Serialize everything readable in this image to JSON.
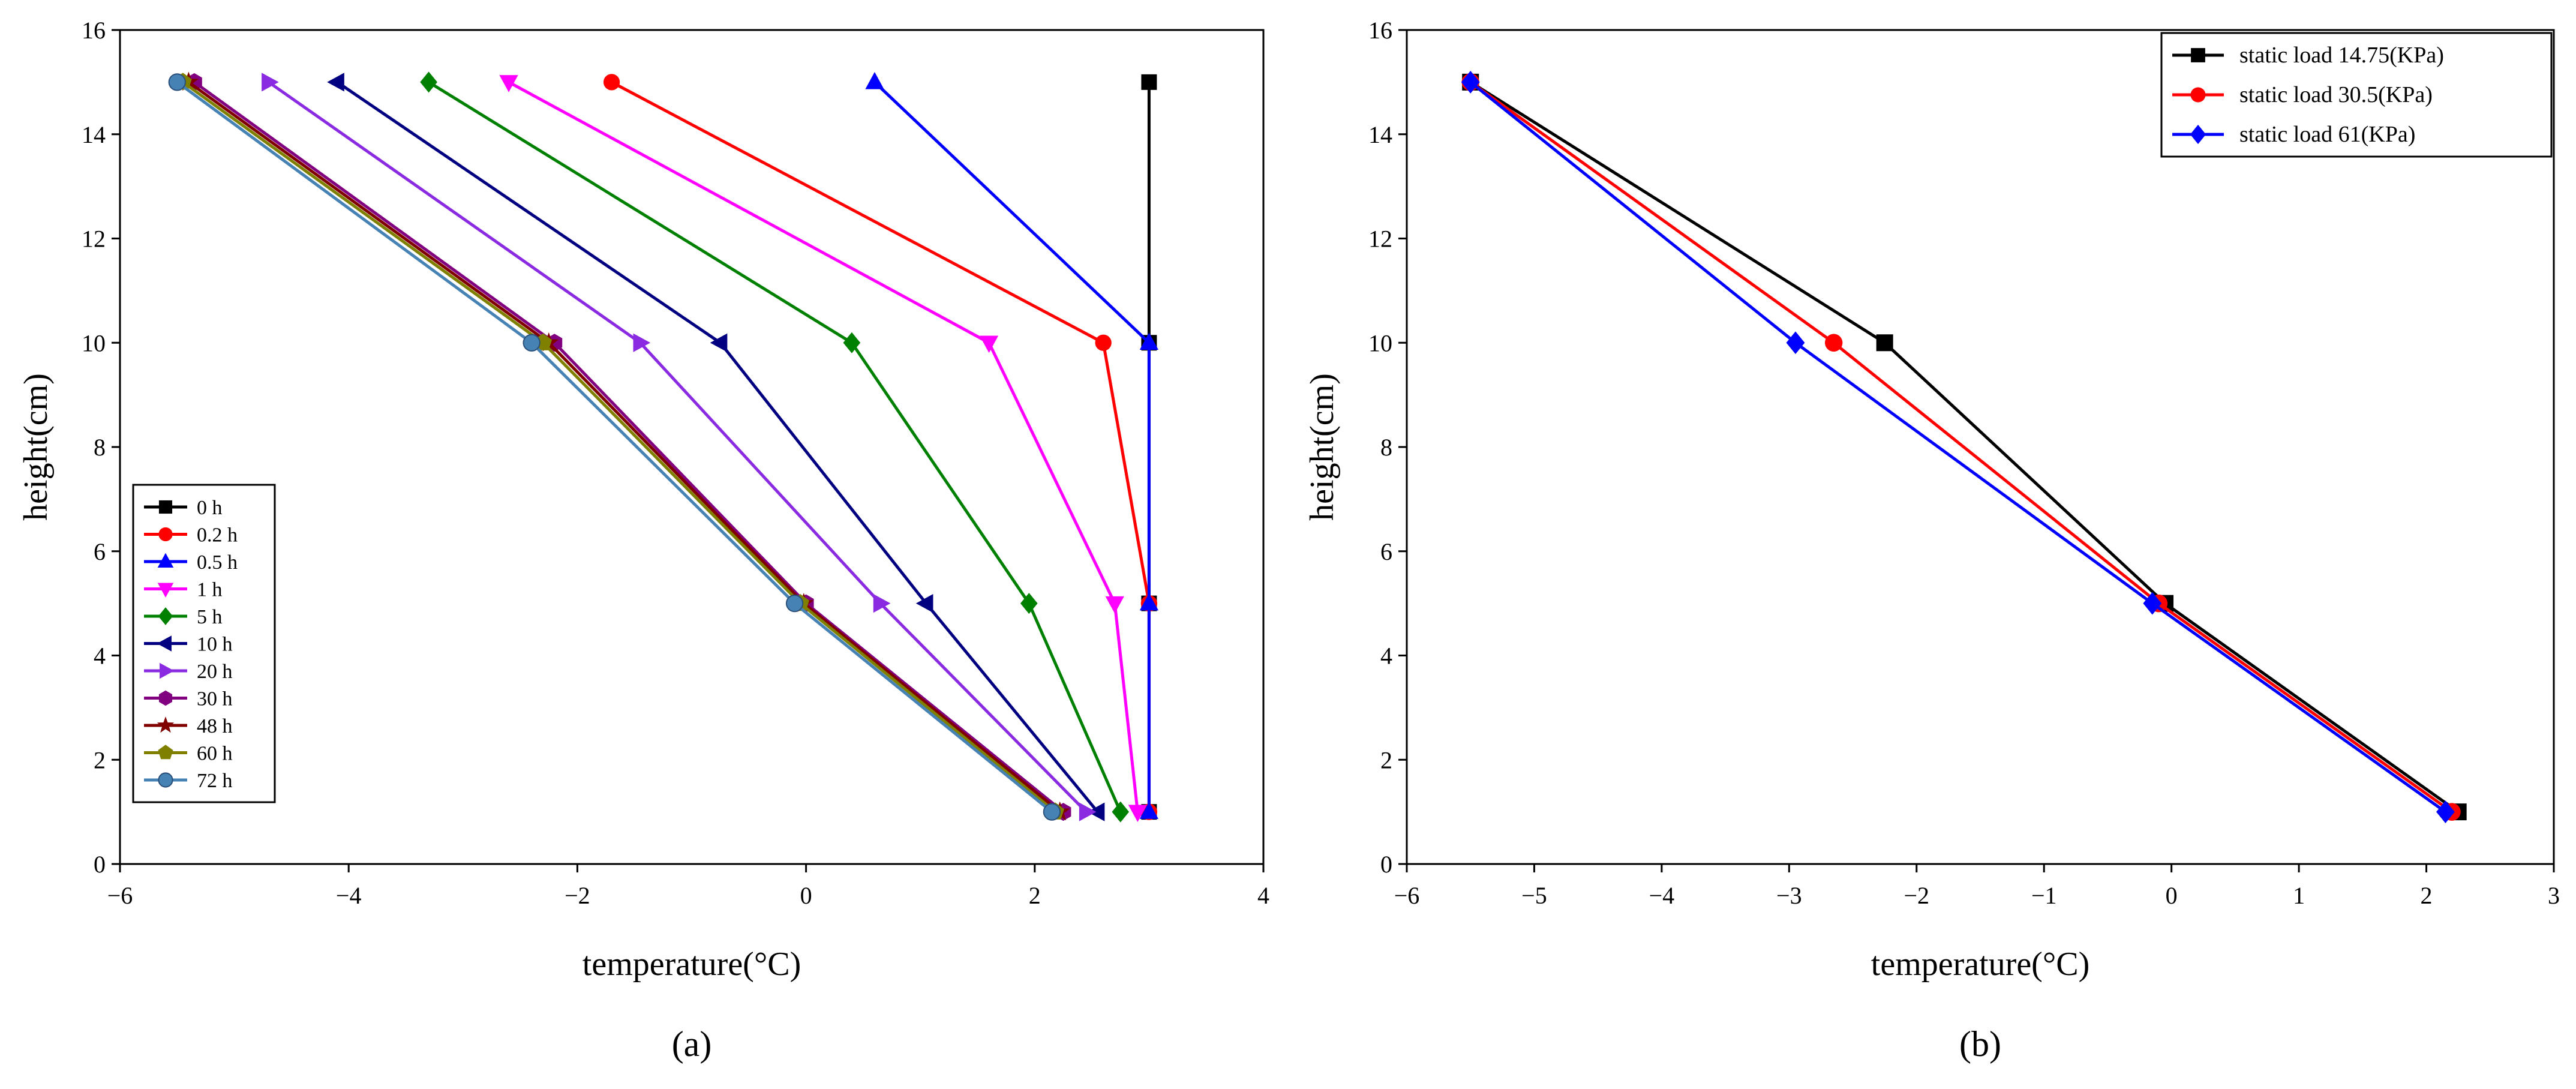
{
  "chart_data": [
    {
      "type": "line",
      "panel_label": "(a)",
      "xlabel": "temperature(°C)",
      "ylabel": "height(cm)",
      "xlim": [
        -6,
        4
      ],
      "ylim": [
        0,
        16
      ],
      "x_ticks": [
        -6,
        -4,
        -2,
        0,
        2,
        4
      ],
      "y_ticks": [
        0,
        2,
        4,
        6,
        8,
        10,
        12,
        14,
        16
      ],
      "legend_position": "bottom-left",
      "y": [
        15,
        10,
        5,
        1
      ],
      "series": [
        {
          "name": "0 h",
          "color": "#000000",
          "marker": "square",
          "x": [
            3.0,
            3.0,
            3.0,
            3.0
          ]
        },
        {
          "name": "0.2 h",
          "color": "#ff0000",
          "marker": "circle",
          "x": [
            -1.7,
            2.6,
            3.0,
            3.0
          ]
        },
        {
          "name": "0.5 h",
          "color": "#0000ff",
          "marker": "triangle-up",
          "x": [
            0.6,
            3.0,
            3.0,
            3.0
          ]
        },
        {
          "name": "1 h",
          "color": "#ff00ff",
          "marker": "triangle-down",
          "x": [
            -2.6,
            1.6,
            2.7,
            2.9
          ]
        },
        {
          "name": "5 h",
          "color": "#008000",
          "marker": "diamond",
          "x": [
            -3.3,
            0.4,
            1.95,
            2.75
          ]
        },
        {
          "name": "10 h",
          "color": "#000080",
          "marker": "triangle-left",
          "x": [
            -4.1,
            -0.75,
            1.05,
            2.55
          ]
        },
        {
          "name": "20 h",
          "color": "#8a2be2",
          "marker": "triangle-right",
          "x": [
            -4.7,
            -1.45,
            0.65,
            2.45
          ]
        },
        {
          "name": "30 h",
          "color": "#800080",
          "marker": "hexagon",
          "x": [
            -5.35,
            -2.2,
            0.0,
            2.25
          ]
        },
        {
          "name": "48 h",
          "color": "#800000",
          "marker": "star",
          "x": [
            -5.4,
            -2.25,
            -0.02,
            2.22
          ]
        },
        {
          "name": "60 h",
          "color": "#808000",
          "marker": "pentagon",
          "x": [
            -5.45,
            -2.3,
            -0.05,
            2.18
          ]
        },
        {
          "name": "72 h",
          "color": "#4682b4",
          "marker": "sphere",
          "x": [
            -5.5,
            -2.4,
            -0.1,
            2.15
          ]
        }
      ]
    },
    {
      "type": "line",
      "panel_label": "(b)",
      "xlabel": "temperature(°C)",
      "ylabel": "height(cm)",
      "xlim": [
        -6,
        3
      ],
      "ylim": [
        0,
        16
      ],
      "x_ticks": [
        -6,
        -5,
        -4,
        -3,
        -2,
        -1,
        0,
        1,
        2,
        3
      ],
      "y_ticks": [
        0,
        2,
        4,
        6,
        8,
        10,
        12,
        14,
        16
      ],
      "legend_position": "top-right",
      "y": [
        15,
        10,
        5,
        1
      ],
      "series": [
        {
          "name": "static load 14.75(KPa)",
          "color": "#000000",
          "marker": "square",
          "x": [
            -5.5,
            -2.25,
            -0.05,
            2.25
          ]
        },
        {
          "name": "static load 30.5(KPa)",
          "color": "#ff0000",
          "marker": "circle",
          "x": [
            -5.5,
            -2.65,
            -0.1,
            2.2
          ]
        },
        {
          "name": "static load 61(KPa)",
          "color": "#0000ff",
          "marker": "diamond",
          "x": [
            -5.5,
            -2.95,
            -0.15,
            2.15
          ]
        }
      ]
    }
  ]
}
